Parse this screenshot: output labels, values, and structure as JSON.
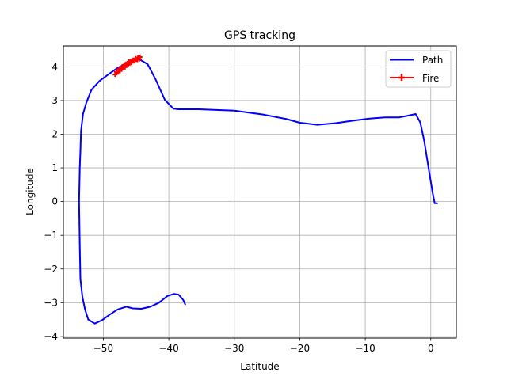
{
  "chart_data": {
    "type": "line",
    "title": "GPS tracking",
    "xlabel": "Latitude",
    "ylabel": "Longitude",
    "xlim": [
      -56.1,
      3.9
    ],
    "ylim": [
      -4.05,
      4.62
    ],
    "xticks": [
      -50,
      -40,
      -30,
      -20,
      -10,
      0
    ],
    "yticks": [
      -4,
      -3,
      -2,
      -1,
      0,
      1,
      2,
      3,
      4
    ],
    "grid": true,
    "legend_position": "top-right",
    "series": [
      {
        "name": "Path",
        "color": "#0000ff",
        "marker": "none",
        "x": [
          -37.5,
          -37.8,
          -38.5,
          -39.2,
          -40.2,
          -41.5,
          -42.8,
          -44.2,
          -45.5,
          -46.5,
          -47.8,
          -49.0,
          -50.2,
          -51.3,
          -52.3,
          -52.8,
          -53.2,
          -53.5,
          -53.6,
          -53.7,
          -53.6,
          -53.5,
          -53.4,
          -53.1,
          -52.6,
          -51.8,
          -50.6,
          -49.2,
          -47.8,
          -46.5,
          -45.5,
          -44.8,
          -44.5,
          -44.0,
          -43.2,
          -42.0,
          -40.6,
          -39.8,
          -39.3,
          -38.5,
          -35.5,
          -30.0,
          -25.5,
          -22.0,
          -20.0,
          -17.3,
          -14.5,
          -12.0,
          -9.5,
          -7.0,
          -4.8,
          -3.5,
          -2.3,
          -1.6,
          -1.0,
          -0.3,
          0.3,
          0.6,
          1.0
        ],
        "y": [
          -3.05,
          -2.92,
          -2.76,
          -2.74,
          -2.8,
          -3.0,
          -3.12,
          -3.18,
          -3.17,
          -3.12,
          -3.2,
          -3.35,
          -3.52,
          -3.62,
          -3.5,
          -3.2,
          -2.82,
          -2.3,
          -1.3,
          0.0,
          1.0,
          1.5,
          2.1,
          2.6,
          2.93,
          3.32,
          3.58,
          3.78,
          3.97,
          4.1,
          4.18,
          4.22,
          4.22,
          4.17,
          4.07,
          3.62,
          3.02,
          2.86,
          2.76,
          2.74,
          2.74,
          2.7,
          2.58,
          2.45,
          2.34,
          2.28,
          2.33,
          2.4,
          2.46,
          2.5,
          2.5,
          2.55,
          2.6,
          2.35,
          1.8,
          0.95,
          0.25,
          -0.05,
          -0.05
        ]
      },
      {
        "name": "Fire",
        "color": "#ff0000",
        "marker": "plus",
        "x": [
          -48.0,
          -47.6,
          -47.1,
          -46.6,
          -46.1,
          -45.6,
          -45.1,
          -44.7,
          -44.4,
          -48.2,
          -47.7,
          -47.2,
          -46.7,
          -46.2,
          -45.7,
          -45.2,
          -44.8,
          -44.5
        ],
        "y": [
          3.85,
          3.93,
          4.01,
          4.08,
          4.15,
          4.2,
          4.25,
          4.28,
          4.29,
          3.77,
          3.84,
          3.92,
          3.99,
          4.06,
          4.12,
          4.17,
          4.21,
          4.23
        ]
      }
    ]
  }
}
